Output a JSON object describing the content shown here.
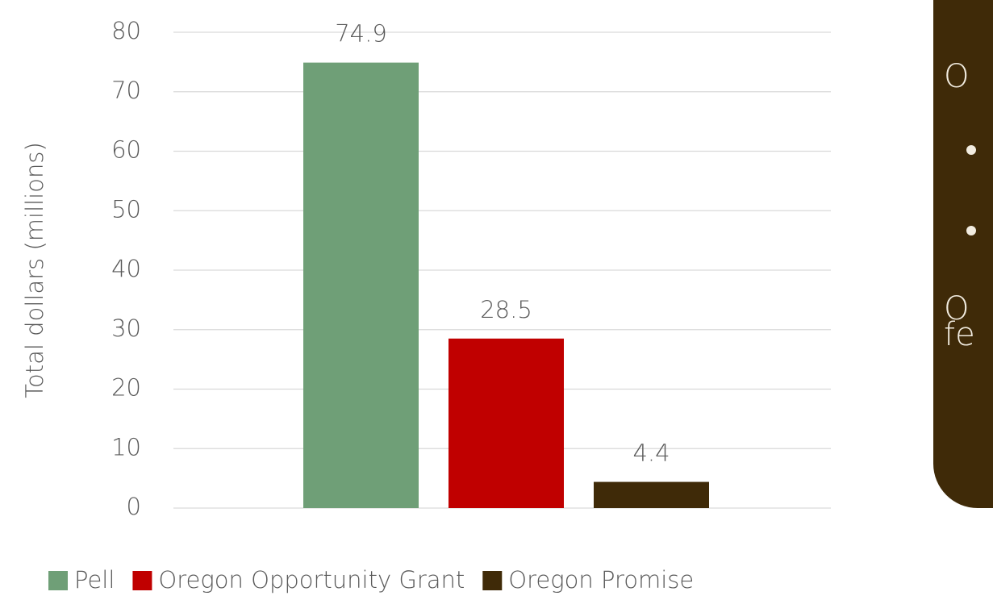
{
  "chart_data": {
    "type": "bar",
    "y_label": "Total dollars (millions)",
    "categories": [
      null
    ],
    "series": [
      {
        "name": "Pell",
        "color": "#6f9f77",
        "values": [
          74.9
        ]
      },
      {
        "name": "Oregon Opportunity Grant",
        "color": "#c00000",
        "values": [
          28.5
        ]
      },
      {
        "name": "Oregon Promise",
        "color": "#3f2a08",
        "values": [
          4.4
        ]
      }
    ],
    "ylim": [
      0,
      80
    ],
    "yticks": [
      0,
      10,
      20,
      30,
      40,
      50,
      60,
      70,
      80
    ],
    "grid": true,
    "legend": "bottom"
  },
  "callout": {
    "lines": [
      "O",
      "O",
      "fe"
    ]
  }
}
